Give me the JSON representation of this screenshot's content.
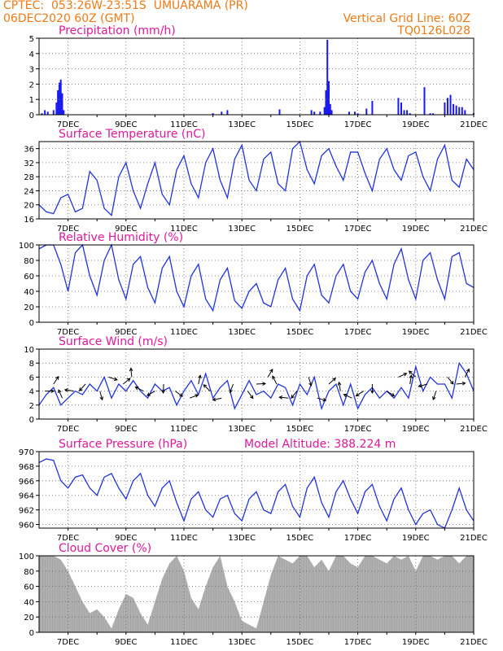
{
  "header": {
    "line1_left": "CPTEC:  053:26W-23:51S  UMUARAMA (PR)",
    "line2_left": "06DEC2020 60Z (GMT)",
    "line2_right": "Vertical Grid Line: 60Z",
    "line3_right": "TQ0126L028"
  },
  "colors": {
    "title": "#e0189a",
    "header": "#f07a14",
    "line": "#2233dd",
    "bars": "#1a1aee",
    "cloud": "#a6a6a6",
    "axis": "#000000"
  },
  "x_axis": {
    "start_day": 6,
    "end_day": 21,
    "tick_labels": [
      "7DEC",
      "9DEC",
      "11DEC",
      "13DEC",
      "15DEC",
      "17DEC",
      "19DEC",
      "21DEC"
    ],
    "tick_days": [
      7,
      9,
      11,
      13,
      15,
      17,
      19,
      21
    ]
  },
  "chart_data": [
    {
      "id": "precip",
      "type": "bar",
      "title": "Precipitation (mm/h)",
      "ylim": [
        0,
        5
      ],
      "yticks": [
        0,
        1,
        2,
        3,
        4,
        5
      ],
      "unit": "mm/h",
      "x": [
        6.1,
        6.2,
        6.3,
        6.5,
        6.6,
        6.65,
        6.7,
        6.75,
        6.8,
        6.85,
        12.0,
        12.3,
        12.5,
        14.3,
        15.4,
        15.5,
        15.7,
        15.85,
        15.9,
        15.95,
        16.0,
        16.05,
        16.1,
        16.7,
        16.9,
        17.0,
        17.3,
        17.5,
        18.4,
        18.5,
        18.6,
        18.7,
        18.8,
        19.3,
        19.5,
        19.6,
        20.0,
        20.1,
        20.2,
        20.3,
        20.4,
        20.5,
        20.6,
        20.7,
        21.0
      ],
      "values": [
        0.1,
        0.3,
        0.2,
        0.3,
        0.8,
        1.6,
        2.1,
        2.3,
        1.4,
        0.3,
        0.1,
        0.2,
        0.3,
        0.35,
        0.3,
        0.2,
        0.2,
        0.5,
        1.6,
        4.9,
        2.2,
        0.7,
        0.3,
        0.2,
        0.2,
        0.1,
        0.4,
        0.9,
        1.1,
        0.8,
        0.3,
        0.3,
        0.1,
        1.8,
        0.1,
        0.1,
        0.8,
        1.1,
        1.3,
        0.7,
        0.6,
        0.5,
        0.5,
        0.3,
        0.1
      ]
    },
    {
      "id": "temp",
      "type": "line",
      "title": "Surface Temperature (nC)",
      "ylim": [
        16,
        38
      ],
      "yticks": [
        16,
        20,
        24,
        28,
        32,
        36
      ],
      "x": [
        6.0,
        6.25,
        6.5,
        6.75,
        7.0,
        7.25,
        7.5,
        7.75,
        8.0,
        8.25,
        8.5,
        8.75,
        9.0,
        9.25,
        9.5,
        9.75,
        10.0,
        10.25,
        10.5,
        10.75,
        11.0,
        11.25,
        11.5,
        11.75,
        12.0,
        12.25,
        12.5,
        12.75,
        13.0,
        13.25,
        13.5,
        13.75,
        14.0,
        14.25,
        14.5,
        14.75,
        15.0,
        15.25,
        15.5,
        15.75,
        16.0,
        16.25,
        16.5,
        16.75,
        17.0,
        17.25,
        17.5,
        17.75,
        18.0,
        18.25,
        18.5,
        18.75,
        19.0,
        19.25,
        19.5,
        19.75,
        20.0,
        20.25,
        20.5,
        20.75,
        21.0
      ],
      "values": [
        20,
        18,
        17.5,
        22,
        23,
        18,
        19,
        29.5,
        27,
        19,
        17,
        28,
        32,
        24,
        19,
        26,
        32,
        23,
        20,
        30,
        34,
        26,
        22,
        32,
        36,
        27,
        22,
        33,
        37,
        27,
        24,
        33,
        35,
        26,
        24,
        36,
        38,
        30,
        26,
        34,
        36,
        31,
        27,
        35,
        35,
        29,
        24,
        33,
        36,
        30,
        27,
        34,
        35,
        28,
        24,
        33,
        37,
        27,
        25,
        33,
        30
      ]
    },
    {
      "id": "rh",
      "type": "line",
      "title": "Relative Humidity (%)",
      "ylim": [
        0,
        100
      ],
      "yticks": [
        0,
        20,
        40,
        60,
        80,
        100
      ],
      "x": [
        6.0,
        6.25,
        6.5,
        6.75,
        7.0,
        7.25,
        7.5,
        7.75,
        8.0,
        8.25,
        8.5,
        8.75,
        9.0,
        9.25,
        9.5,
        9.75,
        10.0,
        10.25,
        10.5,
        10.75,
        11.0,
        11.25,
        11.5,
        11.75,
        12.0,
        12.25,
        12.5,
        12.75,
        13.0,
        13.25,
        13.5,
        13.75,
        14.0,
        14.25,
        14.5,
        14.75,
        15.0,
        15.25,
        15.5,
        15.75,
        16.0,
        16.25,
        16.5,
        16.75,
        17.0,
        17.25,
        17.5,
        17.75,
        18.0,
        18.25,
        18.5,
        18.75,
        19.0,
        19.25,
        19.5,
        19.75,
        20.0,
        20.25,
        20.5,
        20.75,
        21.0
      ],
      "values": [
        95,
        100,
        100,
        75,
        40,
        90,
        100,
        60,
        35,
        80,
        100,
        55,
        30,
        75,
        85,
        45,
        25,
        70,
        85,
        40,
        20,
        60,
        75,
        30,
        15,
        55,
        70,
        28,
        18,
        40,
        50,
        25,
        20,
        55,
        70,
        30,
        15,
        60,
        75,
        35,
        25,
        60,
        75,
        40,
        30,
        65,
        80,
        50,
        30,
        75,
        95,
        55,
        30,
        80,
        90,
        55,
        30,
        85,
        90,
        50,
        45
      ]
    },
    {
      "id": "wind",
      "type": "line",
      "title": "Surface Wind (m/s)",
      "ylim": [
        0,
        10
      ],
      "yticks": [
        0,
        2,
        4,
        6,
        8,
        10
      ],
      "x": [
        6.0,
        6.25,
        6.5,
        6.75,
        7.0,
        7.25,
        7.5,
        7.75,
        8.0,
        8.25,
        8.5,
        8.75,
        9.0,
        9.25,
        9.5,
        9.75,
        10.0,
        10.25,
        10.5,
        10.75,
        11.0,
        11.25,
        11.5,
        11.75,
        12.0,
        12.25,
        12.5,
        12.75,
        13.0,
        13.25,
        13.5,
        13.75,
        14.0,
        14.25,
        14.5,
        14.75,
        15.0,
        15.25,
        15.5,
        15.75,
        16.0,
        16.25,
        16.5,
        16.75,
        17.0,
        17.25,
        17.5,
        17.75,
        18.0,
        18.25,
        18.5,
        18.75,
        19.0,
        19.25,
        19.5,
        19.75,
        20.0,
        20.25,
        20.5,
        20.75,
        21.0
      ],
      "values": [
        2,
        3.5,
        4.5,
        2,
        3,
        4,
        3.5,
        5,
        4,
        6,
        3,
        5,
        4,
        5.5,
        4,
        3,
        5,
        4,
        4.5,
        2,
        4,
        5.5,
        3.5,
        6.5,
        3,
        4.5,
        5.5,
        1.5,
        3.5,
        5.5,
        3.5,
        4,
        3,
        5,
        4.5,
        2,
        5,
        3.5,
        6,
        1.5,
        4,
        5,
        2,
        5,
        1.5,
        3.5,
        4.5,
        3,
        4,
        3,
        4.5,
        3,
        7.5,
        4,
        6,
        5,
        5,
        3,
        8,
        6.5,
        4
      ]
    },
    {
      "id": "press",
      "type": "line",
      "title": "Surface Pressure (hPa)",
      "subtitle": "Model Altitude: 388.224 m",
      "ylim": [
        959.5,
        970
      ],
      "yticks": [
        960,
        962,
        964,
        966,
        968,
        970
      ],
      "x": [
        6.0,
        6.25,
        6.5,
        6.75,
        7.0,
        7.25,
        7.5,
        7.75,
        8.0,
        8.25,
        8.5,
        8.75,
        9.0,
        9.25,
        9.5,
        9.75,
        10.0,
        10.25,
        10.5,
        10.75,
        11.0,
        11.25,
        11.5,
        11.75,
        12.0,
        12.25,
        12.5,
        12.75,
        13.0,
        13.25,
        13.5,
        13.75,
        14.0,
        14.25,
        14.5,
        14.75,
        15.0,
        15.25,
        15.5,
        15.75,
        16.0,
        16.25,
        16.5,
        16.75,
        17.0,
        17.25,
        17.5,
        17.75,
        18.0,
        18.25,
        18.5,
        18.75,
        19.0,
        19.25,
        19.5,
        19.75,
        20.0,
        20.25,
        20.5,
        20.75,
        21.0
      ],
      "values": [
        968.5,
        969,
        968.8,
        966,
        965,
        966.5,
        966.8,
        965,
        964,
        966.5,
        967,
        965,
        963.5,
        966,
        967,
        964,
        962.5,
        965,
        966,
        963,
        960.5,
        963.5,
        964.5,
        962,
        961,
        963.5,
        964,
        961.5,
        960.5,
        963.5,
        964.5,
        962,
        961.5,
        964.5,
        965.5,
        962.5,
        961,
        965,
        966.5,
        963,
        961,
        964.5,
        966,
        963.5,
        961.5,
        964.5,
        965.5,
        962.5,
        960.5,
        963.5,
        965,
        962,
        960,
        961.5,
        962,
        960,
        959.5,
        962,
        965,
        962,
        960.5
      ]
    },
    {
      "id": "cloud",
      "type": "area",
      "title": "Cloud Cover (%)",
      "ylim": [
        0,
        100
      ],
      "yticks": [
        0,
        20,
        40,
        60,
        80,
        100
      ],
      "x": [
        6.0,
        6.25,
        6.5,
        6.75,
        7.0,
        7.25,
        7.5,
        7.75,
        8.0,
        8.25,
        8.5,
        8.75,
        9.0,
        9.25,
        9.5,
        9.75,
        10.0,
        10.25,
        10.5,
        10.75,
        11.0,
        11.25,
        11.5,
        11.75,
        12.0,
        12.25,
        12.5,
        12.75,
        13.0,
        13.25,
        13.5,
        13.75,
        14.0,
        14.25,
        14.5,
        14.75,
        15.0,
        15.25,
        15.5,
        15.75,
        16.0,
        16.25,
        16.5,
        16.75,
        17.0,
        17.25,
        17.5,
        17.75,
        18.0,
        18.25,
        18.5,
        18.75,
        19.0,
        19.25,
        19.5,
        19.75,
        20.0,
        20.25,
        20.5,
        20.75,
        21.0
      ],
      "values": [
        100,
        100,
        100,
        95,
        80,
        60,
        40,
        25,
        30,
        20,
        5,
        30,
        50,
        45,
        25,
        10,
        40,
        70,
        90,
        100,
        80,
        45,
        30,
        60,
        85,
        100,
        60,
        40,
        15,
        10,
        5,
        40,
        75,
        100,
        95,
        90,
        100,
        100,
        85,
        95,
        80,
        100,
        100,
        90,
        85,
        100,
        100,
        95,
        90,
        100,
        95,
        100,
        80,
        100,
        100,
        95,
        100,
        100,
        90,
        100,
        100
      ]
    }
  ],
  "wind_barbs": [
    {
      "d": 6.2,
      "v": 4
    },
    {
      "d": 6.5,
      "v": 5
    },
    {
      "d": 6.8,
      "v": 3
    },
    {
      "d": 7.2,
      "v": 4
    },
    {
      "d": 7.6,
      "v": 5
    },
    {
      "d": 8.1,
      "v": 4
    },
    {
      "d": 8.4,
      "v": 6
    },
    {
      "d": 8.9,
      "v": 5
    },
    {
      "d": 9.2,
      "v": 6
    },
    {
      "d": 9.6,
      "v": 4
    },
    {
      "d": 10.0,
      "v": 4
    },
    {
      "d": 10.3,
      "v": 5
    },
    {
      "d": 10.7,
      "v": 4
    },
    {
      "d": 11.2,
      "v": 3
    },
    {
      "d": 11.5,
      "v": 5
    },
    {
      "d": 11.9,
      "v": 4
    },
    {
      "d": 12.3,
      "v": 3
    },
    {
      "d": 12.7,
      "v": 5
    },
    {
      "d": 13.2,
      "v": 4
    },
    {
      "d": 13.5,
      "v": 5
    },
    {
      "d": 13.9,
      "v": 6
    },
    {
      "d": 14.2,
      "v": 5
    },
    {
      "d": 14.6,
      "v": 3
    },
    {
      "d": 14.9,
      "v": 4
    },
    {
      "d": 15.3,
      "v": 6
    },
    {
      "d": 15.6,
      "v": 3
    },
    {
      "d": 16.0,
      "v": 5
    },
    {
      "d": 16.4,
      "v": 4
    },
    {
      "d": 16.8,
      "v": 3
    },
    {
      "d": 17.2,
      "v": 4
    },
    {
      "d": 17.5,
      "v": 5
    },
    {
      "d": 18.0,
      "v": 4
    },
    {
      "d": 18.4,
      "v": 6
    },
    {
      "d": 18.8,
      "v": 5
    },
    {
      "d": 19.0,
      "v": 6
    },
    {
      "d": 19.4,
      "v": 5
    },
    {
      "d": 19.7,
      "v": 4
    },
    {
      "d": 20.1,
      "v": 6
    },
    {
      "d": 20.4,
      "v": 5
    },
    {
      "d": 20.7,
      "v": 6
    }
  ]
}
